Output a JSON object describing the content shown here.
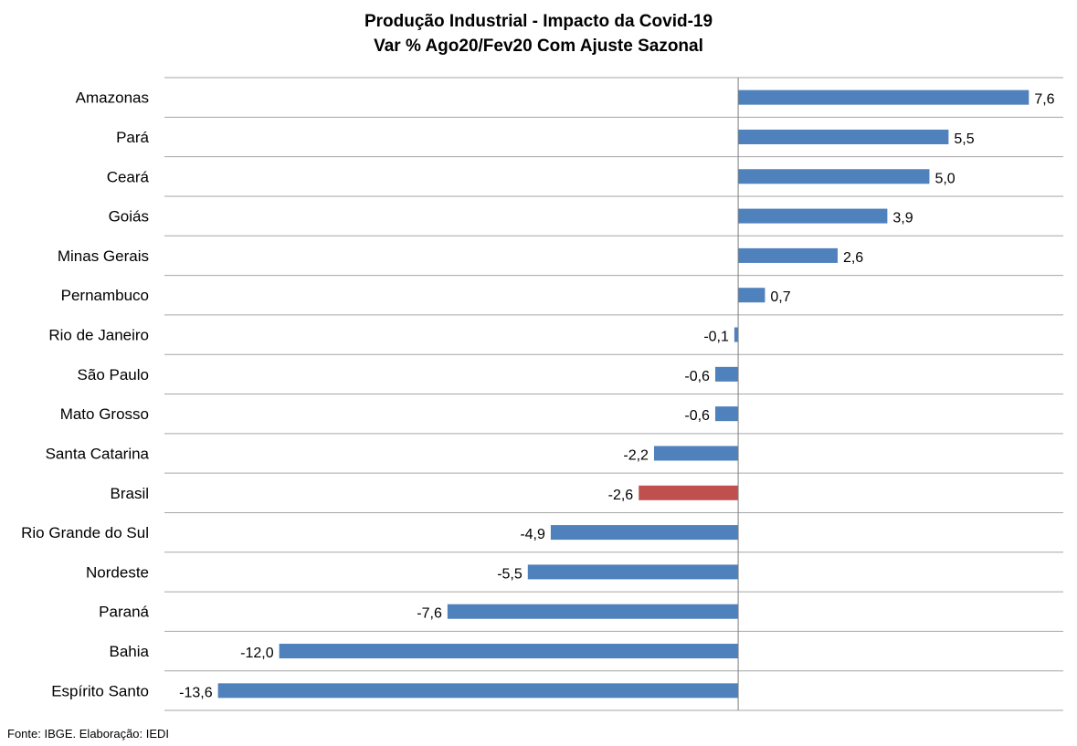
{
  "chart_data": {
    "type": "bar",
    "orientation": "horizontal",
    "title": "Produção Industrial - Impacto da Covid-19",
    "subtitle": "Var % Ago20/Fev20 Com Ajuste Sazonal",
    "categories": [
      "Amazonas",
      "Pará",
      "Ceará",
      "Goiás",
      "Minas Gerais",
      "Pernambuco",
      "Rio de Janeiro",
      "São Paulo",
      "Mato Grosso",
      "Santa Catarina",
      "Brasil",
      "Rio Grande do Sul",
      "Nordeste",
      "Paraná",
      "Bahia",
      "Espírito Santo"
    ],
    "values": [
      7.6,
      5.5,
      5.0,
      3.9,
      2.6,
      0.7,
      -0.1,
      -0.6,
      -0.6,
      -2.2,
      -2.6,
      -4.9,
      -5.5,
      -7.6,
      -12.0,
      -13.6
    ],
    "value_labels": [
      "7,6",
      "5,5",
      "5,0",
      "3,9",
      "2,6",
      "0,7",
      "-0,1",
      "-0,6",
      "-0,6",
      "-2,2",
      "-2,6",
      "-4,9",
      "-5,5",
      "-7,6",
      "-12,0",
      "-13,6"
    ],
    "xlim": [
      -15,
      8.5
    ],
    "highlight_category": "Brasil",
    "colors": {
      "default": "#4f81bd",
      "highlight": "#c0504d",
      "grid": "#a6a6a6"
    },
    "grid": true,
    "xlabel": "",
    "ylabel": ""
  },
  "source_note": "Fonte: IBGE. Elaboração: IEDI"
}
